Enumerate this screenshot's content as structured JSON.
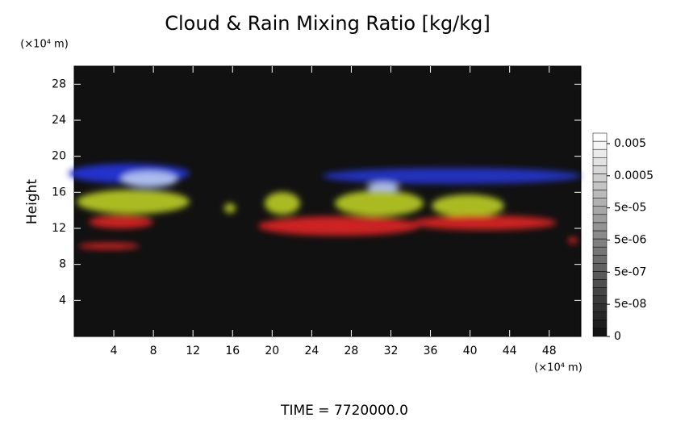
{
  "chart_data": {
    "type": "volume",
    "title": "Cloud & Rain Mixing Ratio [kg/kg]",
    "y_unit": "(×10⁴ m)",
    "x_unit": "(×10⁴ m)",
    "ylabel": "Height",
    "footer": "TIME = 7720000.0",
    "xlim": [
      0,
      51.2
    ],
    "xticks": [
      4,
      8,
      12,
      16,
      20,
      24,
      28,
      32,
      36,
      40,
      44,
      48
    ],
    "ylim": [
      0,
      30
    ],
    "yticks": [
      4,
      8,
      12,
      16,
      20,
      24,
      28
    ],
    "colorbar_ticks": [
      {
        "value": 0,
        "label": "0"
      },
      {
        "value": 5e-08,
        "label": "5e-08"
      },
      {
        "value": 5e-07,
        "label": "5e-07"
      },
      {
        "value": 5e-06,
        "label": "5e-06"
      },
      {
        "value": 5e-05,
        "label": "5e-05"
      },
      {
        "value": 0.0005,
        "label": "0.0005"
      },
      {
        "value": 0.005,
        "label": "0.005"
      }
    ]
  }
}
